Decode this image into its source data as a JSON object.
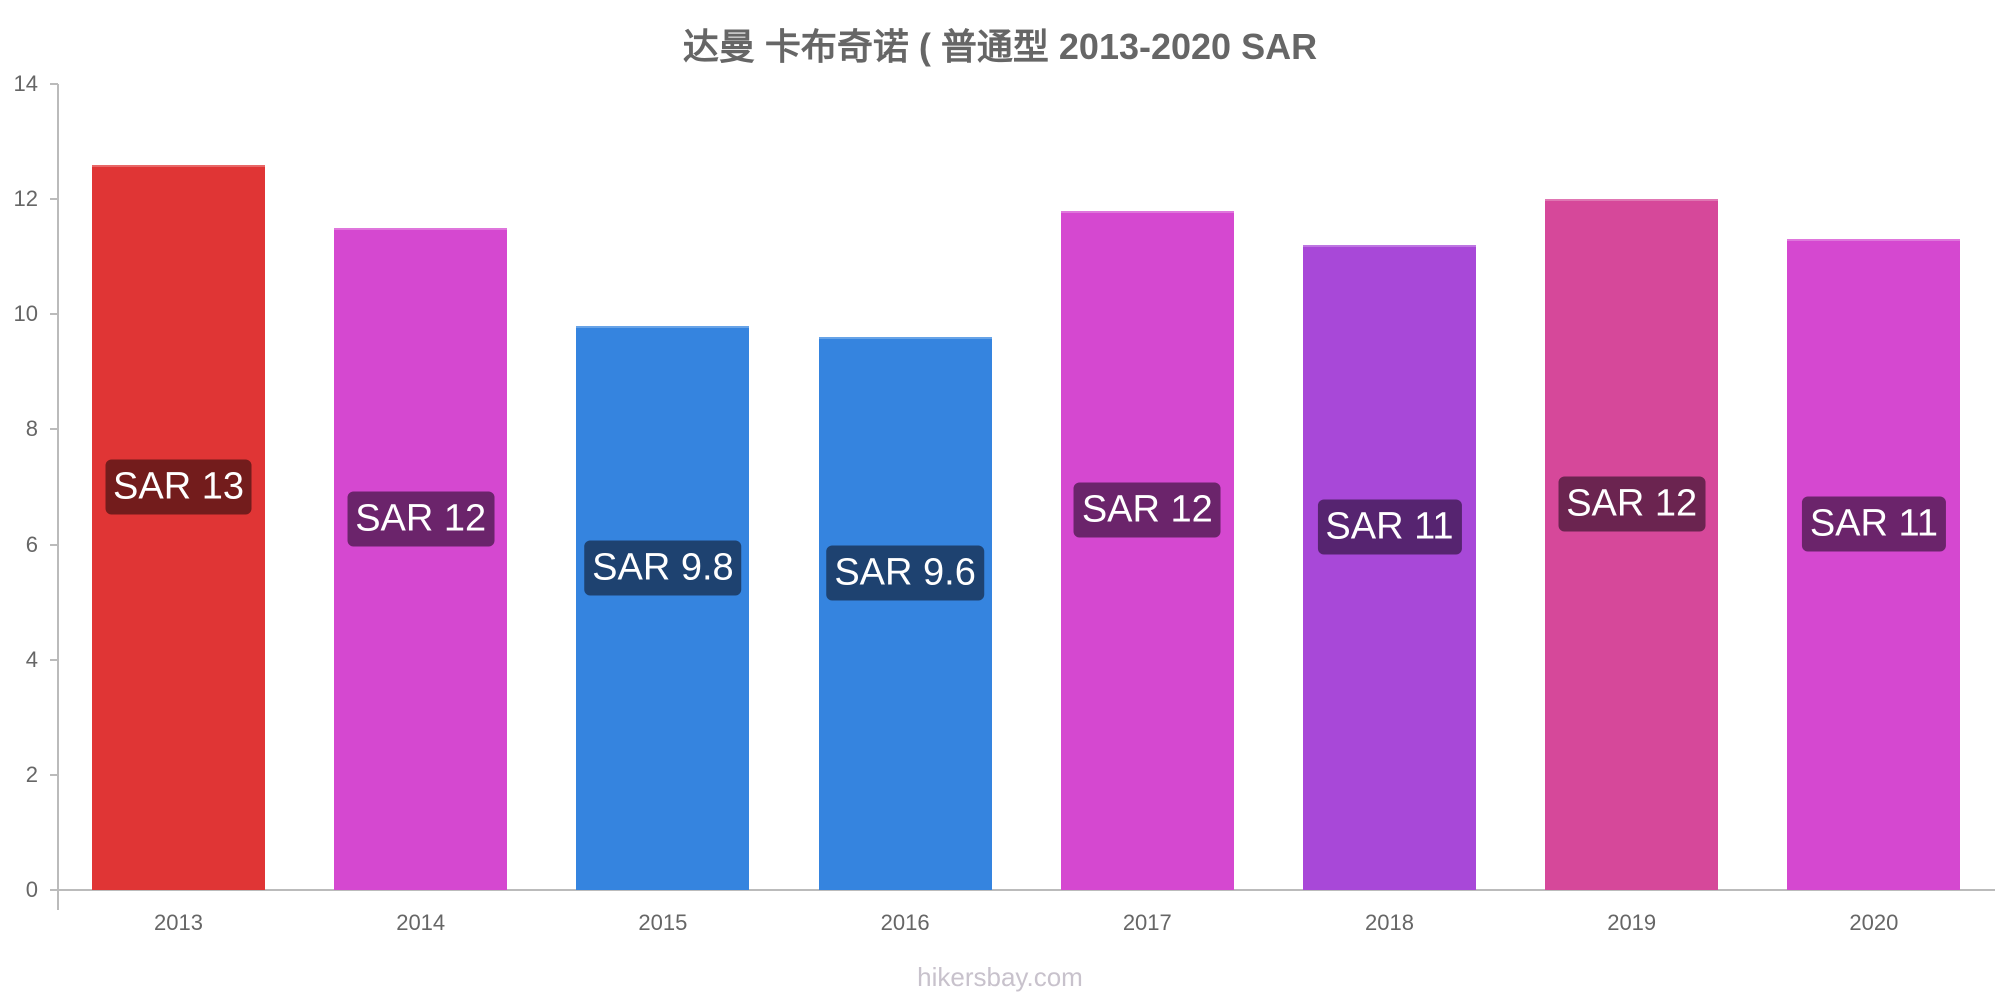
{
  "chart_data": {
    "type": "bar",
    "title": "达曼 卡布奇诺 ( 普通型 2013-2020 SAR",
    "xlabel": "",
    "ylabel": "",
    "ylim": [
      0,
      14
    ],
    "yticks": [
      0,
      2,
      4,
      6,
      8,
      10,
      12,
      14
    ],
    "grid": false,
    "legend": null,
    "categories": [
      "2013",
      "2014",
      "2015",
      "2016",
      "2017",
      "2018",
      "2019",
      "2020"
    ],
    "values": [
      12.6,
      11.5,
      9.8,
      9.6,
      11.8,
      11.2,
      12.0,
      11.3
    ],
    "data_labels": [
      "SAR 13",
      "SAR 12",
      "SAR 9.8",
      "SAR 9.6",
      "SAR 12",
      "SAR 11",
      "SAR 12",
      "SAR 11"
    ],
    "bar_colors": [
      "#e03535",
      "#d548d0",
      "#3584df",
      "#3584df",
      "#d548d0",
      "#a848d8",
      "#d6489a",
      "#d548d0"
    ],
    "label_colors": [
      "#731c1c",
      "#6b246b",
      "#1e4270",
      "#1e4270",
      "#6b246b",
      "#562470",
      "#6b2450",
      "#6b246b"
    ],
    "label_positions": [
      7.0,
      6.45,
      5.6,
      5.5,
      6.6,
      6.3,
      6.7,
      6.35
    ]
  },
  "watermark": "hikersbay.com"
}
